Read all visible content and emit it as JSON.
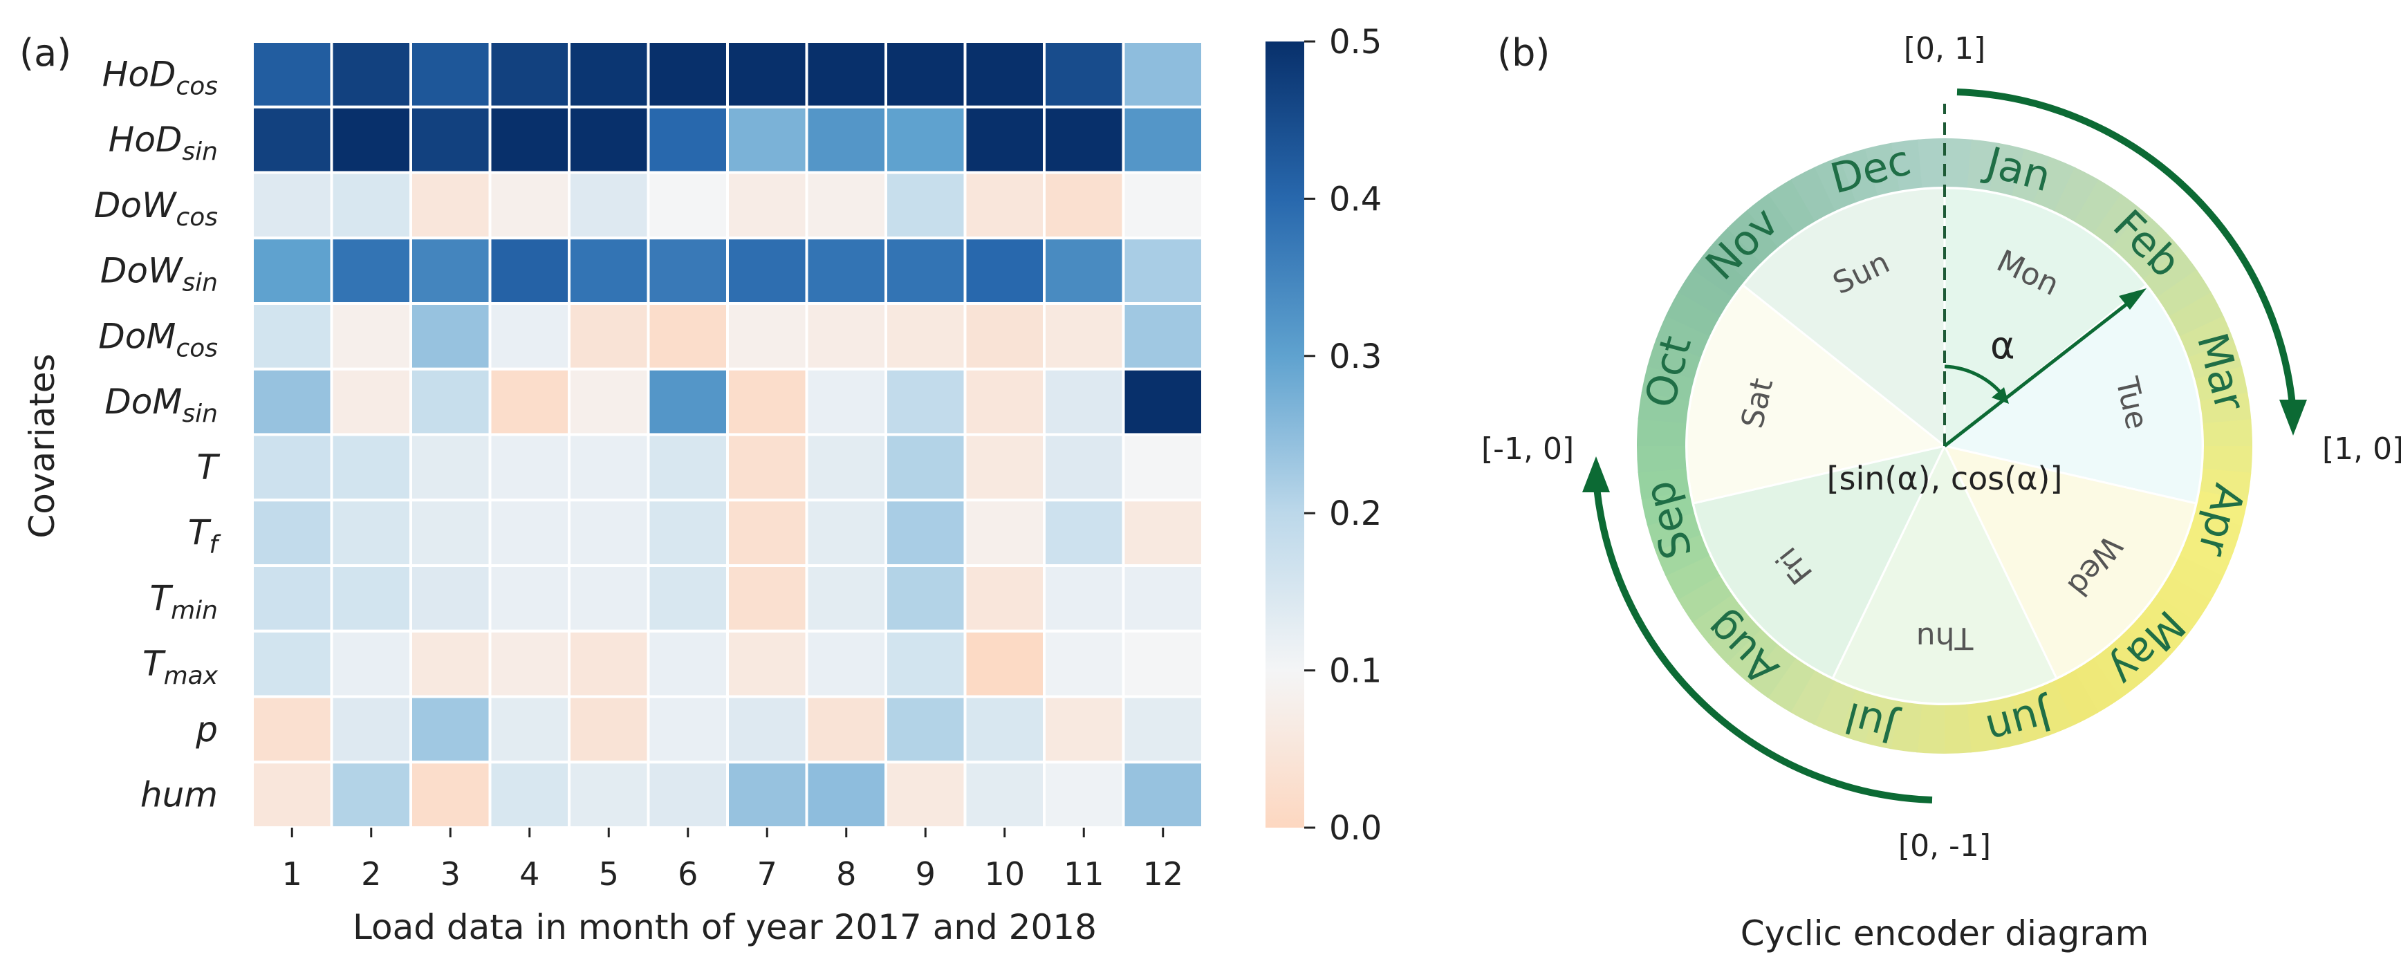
{
  "panel_a": {
    "panel_label": "(a)",
    "ylabel": "Covariates",
    "xlabel": "Load data in month of year 2017 and 2018",
    "colorbar_ticks": [
      "0.0",
      "0.1",
      "0.2",
      "0.3",
      "0.4",
      "0.5"
    ]
  },
  "panel_b": {
    "panel_label": "(b)",
    "caption": "Cyclic encoder diagram",
    "coord_top": "[0, 1]",
    "coord_right": "[1, 0]",
    "coord_bottom": "[0, -1]",
    "coord_left": "[-1, 0]",
    "angle_label": "α",
    "center_label": "[sin(α), cos(α)]",
    "months": [
      "Jan",
      "Feb",
      "Mar",
      "Apr",
      "May",
      "Jun",
      "Jul",
      "Aug",
      "Sep",
      "Oct",
      "Nov",
      "Dec"
    ],
    "days": [
      "Mon",
      "Tue",
      "Wed",
      "Thu",
      "Fri",
      "Sat",
      "Sun"
    ],
    "day_colors": [
      "#e4f6ec",
      "#eefafa",
      "#fcfae4",
      "#ecf8e8",
      "#e2f4e6",
      "#fcfcf0",
      "#e8f4ec"
    ],
    "ring_colors": [
      "#aed2c8",
      "#c8e0a8",
      "#f4ef80",
      "#eee878",
      "#d4e4a0",
      "#98d4a0",
      "#88c0a4"
    ],
    "arrow_color": "#0c6a34",
    "month_text_color": "#1f6e46"
  },
  "chart_data": {
    "type": "heatmap",
    "title": "",
    "xlabel": "Load data in month of year 2017 and 2018",
    "ylabel": "Covariates",
    "categories": [
      "1",
      "2",
      "3",
      "4",
      "5",
      "6",
      "7",
      "8",
      "9",
      "10",
      "11",
      "12"
    ],
    "colormap": "RdBu (diverging, peach at 0.0, white near 0.1, dark blue at 0.5)",
    "vlim": [
      0.0,
      0.5
    ],
    "rows": [
      {
        "name": "HoD",
        "sub": "cos",
        "values": [
          0.42,
          0.47,
          0.43,
          0.47,
          0.49,
          0.5,
          0.5,
          0.5,
          0.5,
          0.5,
          0.45,
          0.25
        ]
      },
      {
        "name": "HoD",
        "sub": "sin",
        "values": [
          0.47,
          0.5,
          0.47,
          0.5,
          0.5,
          0.4,
          0.27,
          0.32,
          0.3,
          0.5,
          0.5,
          0.32
        ]
      },
      {
        "name": "DoW",
        "sub": "cos",
        "values": [
          0.14,
          0.15,
          0.05,
          0.08,
          0.14,
          0.1,
          0.07,
          0.08,
          0.18,
          0.05,
          0.03,
          0.1
        ]
      },
      {
        "name": "DoW",
        "sub": "sin",
        "values": [
          0.3,
          0.38,
          0.35,
          0.41,
          0.38,
          0.37,
          0.39,
          0.38,
          0.38,
          0.4,
          0.34,
          0.22
        ]
      },
      {
        "name": "DoM",
        "sub": "cos",
        "values": [
          0.16,
          0.08,
          0.24,
          0.12,
          0.04,
          0.02,
          0.08,
          0.07,
          0.06,
          0.04,
          0.06,
          0.23
        ]
      },
      {
        "name": "DoM",
        "sub": "sin",
        "values": [
          0.24,
          0.07,
          0.18,
          0.02,
          0.08,
          0.32,
          0.02,
          0.12,
          0.19,
          0.05,
          0.14,
          0.5
        ]
      },
      {
        "name": "T",
        "sub": "",
        "values": [
          0.17,
          0.16,
          0.13,
          0.12,
          0.12,
          0.15,
          0.03,
          0.13,
          0.21,
          0.06,
          0.14,
          0.1
        ]
      },
      {
        "name": "T",
        "sub": "f",
        "values": [
          0.19,
          0.15,
          0.13,
          0.12,
          0.12,
          0.15,
          0.03,
          0.13,
          0.22,
          0.08,
          0.17,
          0.06
        ]
      },
      {
        "name": "T",
        "sub": "min",
        "values": [
          0.17,
          0.16,
          0.14,
          0.12,
          0.12,
          0.15,
          0.03,
          0.13,
          0.21,
          0.05,
          0.12,
          0.12
        ]
      },
      {
        "name": "T",
        "sub": "max",
        "values": [
          0.16,
          0.12,
          0.06,
          0.07,
          0.05,
          0.12,
          0.06,
          0.12,
          0.16,
          0.01,
          0.11,
          0.1
        ]
      },
      {
        "name": "p",
        "sub": "",
        "values": [
          0.03,
          0.14,
          0.23,
          0.13,
          0.04,
          0.12,
          0.14,
          0.04,
          0.21,
          0.15,
          0.06,
          0.13
        ]
      },
      {
        "name": "hum",
        "sub": "",
        "values": [
          0.05,
          0.21,
          0.02,
          0.15,
          0.13,
          0.14,
          0.24,
          0.25,
          0.06,
          0.13,
          0.11,
          0.24
        ]
      }
    ]
  }
}
